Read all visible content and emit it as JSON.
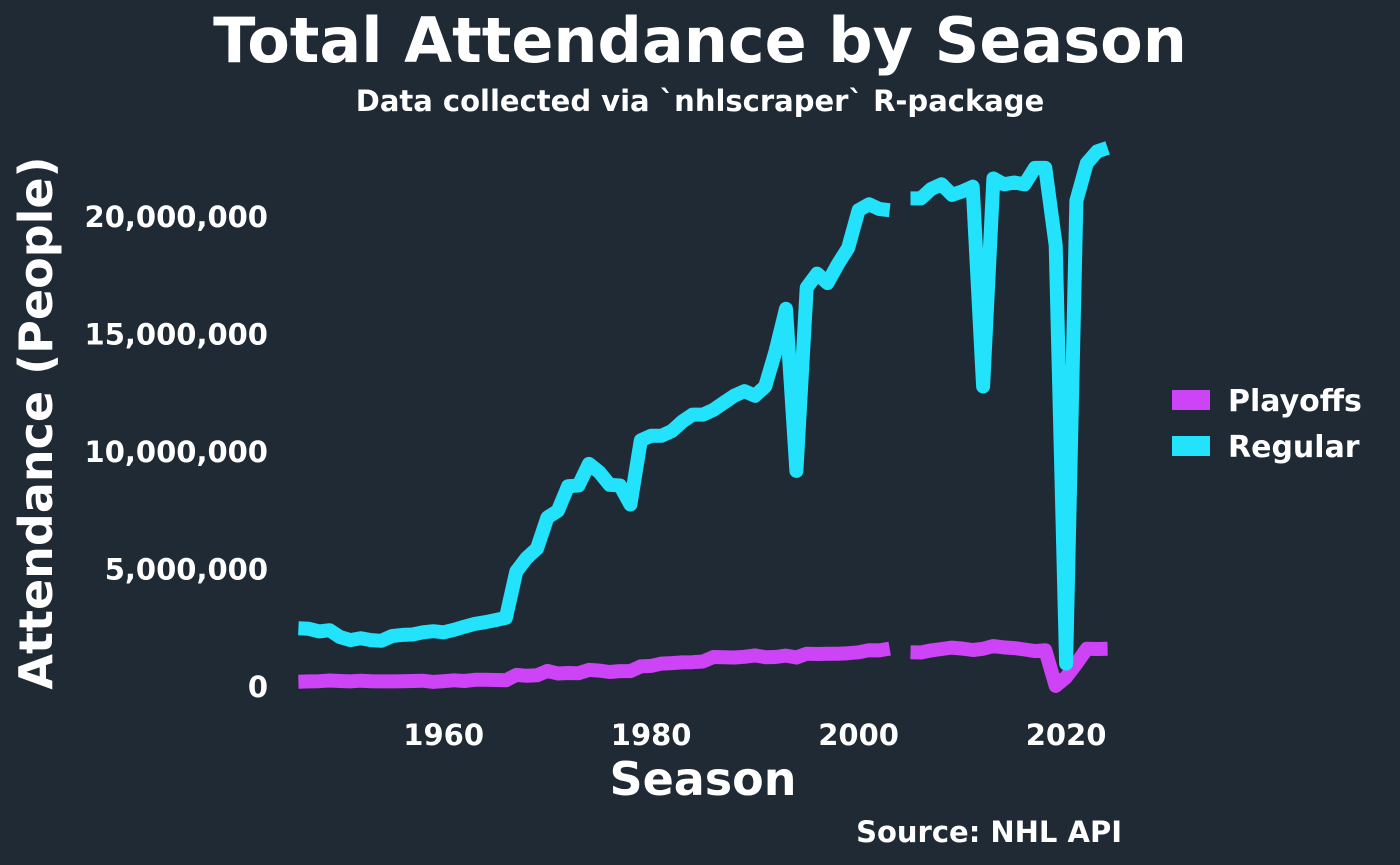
{
  "chart_data": {
    "type": "line",
    "title": "Total Attendance by Season",
    "subtitle": "Data collected via `nhlscraper` R-package",
    "caption": "Source: NHL API",
    "xlabel": "Season",
    "ylabel": "Attendance (People)",
    "xlim": [
      1944.8,
      2025.2
    ],
    "ylim": [
      -550000,
      23500000
    ],
    "x_ticks": [
      1960,
      1980,
      2000,
      2020
    ],
    "x_tick_labels": [
      "1960",
      "1980",
      "2000",
      "2020"
    ],
    "y_ticks": [
      0,
      5000000,
      10000000,
      15000000,
      20000000
    ],
    "y_tick_labels": [
      "0",
      "5,000,000",
      "10,000,000",
      "15,000,000",
      "20,000,000"
    ],
    "grid": false,
    "legend_position": "right",
    "series": [
      {
        "name": "Playoffs",
        "color": "#cc44f5",
        "points": [
          [
            1946,
            230000
          ],
          [
            1947,
            240000
          ],
          [
            1948,
            250000
          ],
          [
            1949,
            280000
          ],
          [
            1950,
            260000
          ],
          [
            1951,
            240000
          ],
          [
            1952,
            270000
          ],
          [
            1953,
            250000
          ],
          [
            1954,
            240000
          ],
          [
            1955,
            240000
          ],
          [
            1956,
            250000
          ],
          [
            1957,
            260000
          ],
          [
            1958,
            270000
          ],
          [
            1959,
            220000
          ],
          [
            1960,
            250000
          ],
          [
            1961,
            290000
          ],
          [
            1962,
            260000
          ],
          [
            1963,
            310000
          ],
          [
            1964,
            310000
          ],
          [
            1965,
            300000
          ],
          [
            1966,
            290000
          ],
          [
            1967,
            520000
          ],
          [
            1968,
            480000
          ],
          [
            1969,
            500000
          ],
          [
            1970,
            690000
          ],
          [
            1971,
            580000
          ],
          [
            1972,
            600000
          ],
          [
            1973,
            590000
          ],
          [
            1974,
            730000
          ],
          [
            1975,
            700000
          ],
          [
            1976,
            640000
          ],
          [
            1977,
            680000
          ],
          [
            1978,
            680000
          ],
          [
            1979,
            880000
          ],
          [
            1980,
            900000
          ],
          [
            1981,
            1000000
          ],
          [
            1982,
            1020000
          ],
          [
            1983,
            1050000
          ],
          [
            1984,
            1060000
          ],
          [
            1985,
            1090000
          ],
          [
            1986,
            1280000
          ],
          [
            1987,
            1270000
          ],
          [
            1988,
            1260000
          ],
          [
            1989,
            1290000
          ],
          [
            1990,
            1350000
          ],
          [
            1991,
            1270000
          ],
          [
            1992,
            1280000
          ],
          [
            1993,
            1340000
          ],
          [
            1994,
            1260000
          ],
          [
            1995,
            1420000
          ],
          [
            1996,
            1410000
          ],
          [
            1997,
            1420000
          ],
          [
            1998,
            1420000
          ],
          [
            1999,
            1440000
          ],
          [
            2000,
            1480000
          ],
          [
            2001,
            1570000
          ],
          [
            2002,
            1560000
          ],
          [
            2003,
            1640000
          ],
          [
            2004,
            null
          ],
          [
            2005,
            1480000
          ],
          [
            2006,
            1470000
          ],
          [
            2007,
            1560000
          ],
          [
            2008,
            1620000
          ],
          [
            2009,
            1680000
          ],
          [
            2010,
            1640000
          ],
          [
            2011,
            1580000
          ],
          [
            2012,
            1630000
          ],
          [
            2013,
            1750000
          ],
          [
            2014,
            1690000
          ],
          [
            2015,
            1660000
          ],
          [
            2016,
            1600000
          ],
          [
            2017,
            1530000
          ],
          [
            2018,
            1570000
          ],
          [
            2019,
            50000
          ],
          [
            2020,
            420000
          ],
          [
            2021,
            1000000
          ],
          [
            2022,
            1630000
          ],
          [
            2023,
            1620000
          ],
          [
            2024,
            1630000
          ]
        ]
      },
      {
        "name": "Regular",
        "color": "#22e2fc",
        "points": [
          [
            1946,
            2500000
          ],
          [
            1947,
            2480000
          ],
          [
            1948,
            2370000
          ],
          [
            1949,
            2420000
          ],
          [
            1950,
            2130000
          ],
          [
            1951,
            2000000
          ],
          [
            1952,
            2080000
          ],
          [
            1953,
            2000000
          ],
          [
            1954,
            1970000
          ],
          [
            1955,
            2170000
          ],
          [
            1956,
            2220000
          ],
          [
            1957,
            2240000
          ],
          [
            1958,
            2330000
          ],
          [
            1959,
            2380000
          ],
          [
            1960,
            2330000
          ],
          [
            1961,
            2440000
          ],
          [
            1962,
            2570000
          ],
          [
            1963,
            2690000
          ],
          [
            1964,
            2760000
          ],
          [
            1965,
            2850000
          ],
          [
            1966,
            2950000
          ],
          [
            1967,
            4920000
          ],
          [
            1968,
            5500000
          ],
          [
            1969,
            5900000
          ],
          [
            1970,
            7220000
          ],
          [
            1971,
            7500000
          ],
          [
            1972,
            8550000
          ],
          [
            1973,
            8580000
          ],
          [
            1974,
            9500000
          ],
          [
            1975,
            9150000
          ],
          [
            1976,
            8610000
          ],
          [
            1977,
            8580000
          ],
          [
            1978,
            7770000
          ],
          [
            1979,
            10500000
          ],
          [
            1980,
            10700000
          ],
          [
            1981,
            10700000
          ],
          [
            1982,
            10900000
          ],
          [
            1983,
            11300000
          ],
          [
            1984,
            11600000
          ],
          [
            1985,
            11600000
          ],
          [
            1986,
            11800000
          ],
          [
            1987,
            12100000
          ],
          [
            1988,
            12400000
          ],
          [
            1989,
            12600000
          ],
          [
            1990,
            12400000
          ],
          [
            1991,
            12800000
          ],
          [
            1992,
            14300000
          ],
          [
            1993,
            16100000
          ],
          [
            1994,
            9200000
          ],
          [
            1995,
            17000000
          ],
          [
            1996,
            17600000
          ],
          [
            1997,
            17200000
          ],
          [
            1998,
            18000000
          ],
          [
            1999,
            18700000
          ],
          [
            2000,
            20300000
          ],
          [
            2001,
            20550000
          ],
          [
            2002,
            20350000
          ],
          [
            2003,
            20300000
          ],
          [
            2004,
            null
          ],
          [
            2005,
            20800000
          ],
          [
            2006,
            20800000
          ],
          [
            2007,
            21200000
          ],
          [
            2008,
            21400000
          ],
          [
            2009,
            20950000
          ],
          [
            2010,
            21100000
          ],
          [
            2011,
            21300000
          ],
          [
            2012,
            12800000
          ],
          [
            2013,
            21650000
          ],
          [
            2014,
            21400000
          ],
          [
            2015,
            21480000
          ],
          [
            2016,
            21400000
          ],
          [
            2017,
            22100000
          ],
          [
            2018,
            22100000
          ],
          [
            2019,
            18800000
          ],
          [
            2020,
            1000000
          ],
          [
            2021,
            20700000
          ],
          [
            2022,
            22300000
          ],
          [
            2023,
            22800000
          ],
          [
            2024,
            22950000
          ]
        ]
      }
    ]
  }
}
